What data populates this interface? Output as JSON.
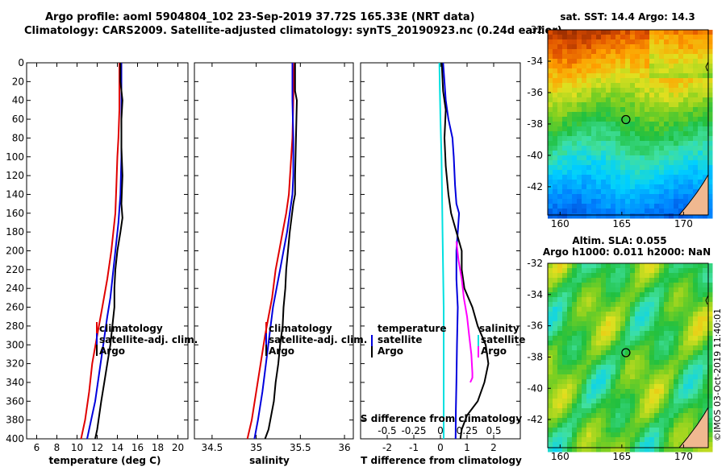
{
  "header": {
    "line1": "Argo profile: aoml 5904804_102 23-Sep-2019 37.72S 165.33E (NRT data)",
    "line2": "Climatology: CARS2009. Satellite-adjusted climatology: synTS_20190923.nc (0.24d earlier)"
  },
  "colors": {
    "climatology": "#e00000",
    "satellite": "#0000dd",
    "argo": "#000000",
    "t_difference": "#00e0e0",
    "s_difference": "#ff00ff"
  },
  "chart_data": [
    {
      "type": "line",
      "id": "temperature",
      "xlabel": "temperature (deg C)",
      "ylabel": "depth",
      "xlim": [
        5,
        21
      ],
      "ylim": [
        400,
        0
      ],
      "xticks": [
        "6",
        "8",
        "10",
        "12",
        "14",
        "16",
        "18",
        "20"
      ],
      "yticks": [
        "0",
        "20",
        "40",
        "60",
        "80",
        "100",
        "120",
        "140",
        "160",
        "180",
        "200",
        "220",
        "240",
        "260",
        "280",
        "300",
        "320",
        "340",
        "360",
        "380",
        "400"
      ],
      "legend": [
        "climatology",
        "satellite-adj. clim.",
        "Argo"
      ],
      "series": [
        {
          "name": "climatology",
          "color": "#e00000",
          "x": [
            14.2,
            14.2,
            14.2,
            14.1,
            14.0,
            13.9,
            13.8,
            13.6,
            13.4,
            13.0,
            12.5,
            12.0,
            11.5,
            11.2,
            10.8,
            10.4
          ],
          "y": [
            0,
            20,
            50,
            80,
            100,
            130,
            160,
            180,
            200,
            230,
            260,
            290,
            320,
            350,
            380,
            400
          ]
        },
        {
          "name": "satellite-adj. clim.",
          "color": "#0000dd",
          "x": [
            14.4,
            14.4,
            14.4,
            14.4,
            14.3,
            14.1,
            13.9,
            13.7,
            13.5,
            13.3,
            13.0,
            12.6,
            12.2,
            11.8,
            11.4,
            11.0
          ],
          "y": [
            0,
            20,
            50,
            100,
            140,
            170,
            190,
            210,
            230,
            250,
            270,
            300,
            330,
            360,
            380,
            400
          ]
        },
        {
          "name": "Argo",
          "color": "#000000",
          "x": [
            14.3,
            14.3,
            14.5,
            14.4,
            14.4,
            14.5,
            14.4,
            14.5,
            14.3,
            14.0,
            13.8,
            13.7,
            13.7,
            13.5,
            13.3,
            13.0,
            12.7,
            12.4,
            12.2,
            12.0,
            11.8
          ],
          "y": [
            0,
            20,
            40,
            60,
            90,
            120,
            150,
            165,
            180,
            200,
            220,
            240,
            260,
            280,
            300,
            320,
            340,
            360,
            375,
            390,
            400
          ]
        }
      ]
    },
    {
      "type": "line",
      "id": "salinity",
      "xlabel": "salinity",
      "xlim": [
        34.3,
        36.1
      ],
      "ylim": [
        400,
        0
      ],
      "xticks": [
        "34.5",
        "35",
        "35.5",
        "36"
      ],
      "legend": [
        "climatology",
        "satellite-adj. clim.",
        "Argo"
      ],
      "series": [
        {
          "name": "climatology",
          "color": "#e00000",
          "x": [
            35.43,
            35.42,
            35.41,
            35.39,
            35.37,
            35.34,
            35.3,
            35.26,
            35.22,
            35.18,
            35.14,
            35.1,
            35.05,
            35.0,
            34.95,
            34.9
          ],
          "y": [
            0,
            40,
            80,
            110,
            140,
            160,
            180,
            200,
            220,
            250,
            270,
            290,
            320,
            350,
            380,
            400
          ]
        },
        {
          "name": "satellite-adj. clim.",
          "color": "#0000dd",
          "x": [
            35.41,
            35.41,
            35.42,
            35.42,
            35.41,
            35.38,
            35.35,
            35.31,
            35.27,
            35.23,
            35.19,
            35.15,
            35.11,
            35.07,
            35.02,
            34.98
          ],
          "y": [
            0,
            40,
            80,
            120,
            140,
            160,
            180,
            200,
            220,
            240,
            260,
            290,
            320,
            350,
            380,
            400
          ]
        },
        {
          "name": "Argo",
          "color": "#000000",
          "x": [
            35.44,
            35.44,
            35.46,
            35.45,
            35.44,
            35.44,
            35.42,
            35.4,
            35.38,
            35.36,
            35.34,
            35.33,
            35.31,
            35.3,
            35.27,
            35.25,
            35.22,
            35.2,
            35.17,
            35.14,
            35.1
          ],
          "y": [
            0,
            30,
            40,
            80,
            120,
            140,
            150,
            165,
            180,
            200,
            220,
            240,
            260,
            280,
            300,
            320,
            340,
            360,
            375,
            390,
            400
          ]
        }
      ]
    },
    {
      "type": "line",
      "id": "difference",
      "xlabel": "T difference from climatology",
      "x2label": "S difference from climatology",
      "xlim": [
        -3,
        3
      ],
      "x2lim": [
        -0.75,
        0.75
      ],
      "ylim": [
        400,
        0
      ],
      "xticks": [
        "-2",
        "-1",
        "0",
        "1",
        "2"
      ],
      "x2ticks": [
        "-0.5",
        "-0.25",
        "0",
        "0.25",
        "0.5"
      ],
      "legend_left": [
        "temperature",
        "satellite",
        "Argo"
      ],
      "legend_right": [
        "salinity",
        "satellite",
        "Argo"
      ],
      "series": [
        {
          "name": "T diff satellite",
          "color": "#0000dd",
          "x": [
            0.1,
            0.15,
            0.2,
            0.3,
            0.45,
            0.5,
            0.55,
            0.6,
            0.7,
            0.65,
            0.6,
            0.6,
            0.65,
            0.62,
            0.6,
            0.58,
            0.57
          ],
          "y": [
            0,
            20,
            40,
            60,
            80,
            100,
            130,
            150,
            160,
            180,
            200,
            230,
            260,
            300,
            340,
            370,
            400
          ]
        },
        {
          "name": "T diff Argo",
          "color": "#000000",
          "x": [
            0.05,
            0.1,
            0.2,
            0.15,
            0.2,
            0.3,
            0.4,
            0.6,
            0.8,
            0.8,
            0.9,
            1.2,
            1.4,
            1.7,
            1.8,
            1.65,
            1.4,
            1.0,
            0.8,
            0.75
          ],
          "y": [
            0,
            30,
            50,
            80,
            110,
            140,
            160,
            180,
            200,
            220,
            240,
            260,
            280,
            300,
            320,
            340,
            360,
            375,
            390,
            400
          ]
        },
        {
          "name": "S diff satellite",
          "color": "#00e0e0",
          "x": [
            -0.01,
            -0.005,
            0.0,
            0.01,
            0.015,
            0.02,
            0.025,
            0.03,
            0.03,
            0.03,
            0.03,
            0.03
          ],
          "y": [
            0,
            30,
            60,
            100,
            140,
            180,
            220,
            260,
            300,
            340,
            370,
            400
          ]
        },
        {
          "name": "S diff Argo",
          "color": "#ff00ff",
          "x": [
            0.15,
            0.17,
            0.2,
            0.22,
            0.25,
            0.27,
            0.29,
            0.3,
            0.3,
            0.28
          ],
          "y": [
            190,
            210,
            230,
            250,
            270,
            290,
            310,
            330,
            335,
            340
          ]
        }
      ]
    },
    {
      "type": "heatmap",
      "id": "sst-map",
      "title": "sat. SST: 14.4 Argo: 14.3",
      "xticks": [
        "160",
        "165",
        "170"
      ],
      "yticks": [
        "-32",
        "-34",
        "-36",
        "-38",
        "-40",
        "-42"
      ],
      "xlim": [
        159,
        172
      ],
      "ylim": [
        -43.8,
        -32
      ],
      "marker": {
        "lon": 165.33,
        "lat": -37.72
      }
    },
    {
      "type": "heatmap",
      "id": "sla-map",
      "title1": "Altim. SLA: 0.055",
      "title2": "Argo h1000: 0.011 h2000: NaN",
      "xticks": [
        "160",
        "165",
        "170"
      ],
      "yticks": [
        "-32",
        "-34",
        "-36",
        "-38",
        "-40",
        "-42"
      ],
      "xlim": [
        159,
        172
      ],
      "ylim": [
        -43.8,
        -32
      ],
      "marker": {
        "lon": 165.33,
        "lat": -37.72
      }
    }
  ],
  "footer": {
    "stamp": "©IMOS 03-Oct-2019 11:40:01"
  }
}
